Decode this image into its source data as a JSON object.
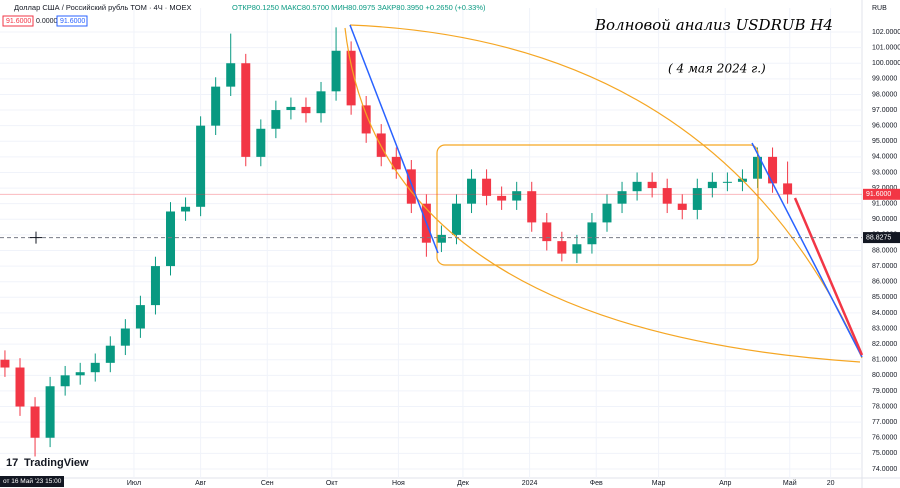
{
  "chart_data": {
    "type": "candlestick",
    "symbol": "Доллар США / Российский рубль TOM · 4Ч · MOEX",
    "ohlc_info": "ОТКР80.1250 МАКС80.5700 МИН80.0975 ЗАКР80.3950 +0.2650 (+0.33%)",
    "price_boxes": [
      "91.6000",
      "0.0000",
      "91.6000"
    ],
    "currency": "RUB",
    "title": "Волновой анализ USDRUB H4",
    "subtitle": "( 4 мая 2024 г.)",
    "brand": "TradingView",
    "cursor_time": "от 16 Май '23  15:00",
    "last_price": {
      "value": 91.6,
      "label": "91.6000"
    },
    "crosshair_price": {
      "value": 88.8275,
      "label": "88.8275"
    },
    "colors": {
      "up": "#089981",
      "down": "#f23645"
    },
    "x": [
      -60,
      -53,
      -46,
      -39,
      -32,
      -25,
      -18,
      -11,
      -4,
      3,
      10,
      17,
      24,
      31,
      38,
      45,
      52,
      59,
      66,
      73,
      80,
      87,
      94,
      101,
      108,
      115,
      122,
      129,
      136,
      143,
      150,
      157,
      164,
      171,
      178,
      185,
      192,
      199,
      206,
      213,
      220,
      227,
      234,
      241,
      248,
      255,
      262,
      269,
      276,
      283,
      290,
      297,
      304
    ],
    "open": [
      81,
      80.5,
      78,
      76,
      79.3,
      80,
      80.2,
      80.8,
      81.9,
      83,
      84.5,
      87,
      90.5,
      90.8,
      96,
      98.5,
      100,
      94,
      95.8,
      97,
      97.2,
      96.8,
      98.2,
      100.8,
      97.3,
      95.5,
      94,
      93.2,
      91,
      88.5,
      89,
      91,
      92.6,
      91.5,
      91.2,
      91.8,
      89.8,
      88.6,
      87.8,
      88.4,
      89.8,
      91,
      91.8,
      92.4,
      92,
      91,
      90.6,
      92,
      92.4,
      92.4,
      92.6,
      94,
      92.3
    ],
    "high": [
      81.6,
      81.1,
      78.6,
      79.9,
      80.6,
      80.8,
      81.4,
      82.5,
      83.6,
      85.1,
      87.6,
      91.1,
      91.4,
      96.6,
      99.1,
      101.9,
      100.6,
      96.4,
      97.6,
      97.8,
      97.8,
      98.8,
      102.3,
      101.4,
      97.9,
      96.1,
      94.6,
      93.8,
      91.6,
      89.6,
      91.6,
      93.2,
      93.2,
      92.1,
      92.4,
      92.4,
      90.4,
      89.2,
      89,
      90.4,
      91.6,
      92.4,
      93,
      93,
      92.6,
      91.6,
      92.6,
      93,
      93,
      93.2,
      94.6,
      94.6,
      93.7
    ],
    "low": [
      79.9,
      77.4,
      74.8,
      75.4,
      78.7,
      79.4,
      79.6,
      80.2,
      81.3,
      82.4,
      83.9,
      86.4,
      89.9,
      90.2,
      95.4,
      97.9,
      93.4,
      93.4,
      95.2,
      96.4,
      96.2,
      96.2,
      97.6,
      96.7,
      94.9,
      93.4,
      92.6,
      90.4,
      87.6,
      87.9,
      88.4,
      90.4,
      90.9,
      90.6,
      90.6,
      89.2,
      88,
      87.3,
      87.2,
      87.8,
      89.2,
      90.4,
      91.2,
      91.4,
      90.4,
      90,
      90,
      91.4,
      91.8,
      91.8,
      92,
      91.7,
      91
    ],
    "close": [
      80.5,
      78,
      76,
      79.3,
      80,
      80.2,
      80.8,
      81.9,
      83,
      84.5,
      87,
      90.5,
      90.8,
      96,
      98.5,
      100,
      94,
      95.8,
      97,
      97.2,
      96.8,
      98.2,
      100.8,
      97.3,
      95.5,
      94,
      93.2,
      91,
      88.5,
      89,
      91,
      92.6,
      91.5,
      91.2,
      91.8,
      89.8,
      88.6,
      87.8,
      88.4,
      89.8,
      91,
      91.8,
      92.4,
      92,
      91,
      90.6,
      92,
      92.4,
      92.4,
      92.6,
      94,
      92.3,
      91.6
    ],
    "xlim": [
      -62.3,
      338.6
    ],
    "xticks": [
      {
        "value": 0,
        "label": "Июл"
      },
      {
        "value": 31,
        "label": "Авг"
      },
      {
        "value": 62,
        "label": "Сен"
      },
      {
        "value": 92,
        "label": "Окт"
      },
      {
        "value": 123,
        "label": "Ноя"
      },
      {
        "value": 153,
        "label": "Дек"
      },
      {
        "value": 184,
        "label": "2024"
      },
      {
        "value": 215,
        "label": "Фев"
      },
      {
        "value": 244,
        "label": "Мар"
      },
      {
        "value": 275,
        "label": "Апр"
      },
      {
        "value": 305,
        "label": "Май"
      },
      {
        "value": 324,
        "label": "20"
      }
    ],
    "ylim": [
      73.42,
      103.54
    ],
    "yticks": [
      {
        "value": 74,
        "label": "74.0000"
      },
      {
        "value": 75,
        "label": "75.0000"
      },
      {
        "value": 76,
        "label": "76.0000"
      },
      {
        "value": 77,
        "label": "77.0000"
      },
      {
        "value": 78,
        "label": "78.0000"
      },
      {
        "value": 79,
        "label": "79.0000"
      },
      {
        "value": 80,
        "label": "80.0000"
      },
      {
        "value": 81,
        "label": "81.0000"
      },
      {
        "value": 82,
        "label": "82.0000"
      },
      {
        "value": 83,
        "label": "83.0000"
      },
      {
        "value": 84,
        "label": "84.0000"
      },
      {
        "value": 85,
        "label": "85.0000"
      },
      {
        "value": 86,
        "label": "86.0000"
      },
      {
        "value": 87,
        "label": "87.0000"
      },
      {
        "value": 88,
        "label": "88.0000"
      },
      {
        "value": 89,
        "label": "89.0000"
      },
      {
        "value": 90,
        "label": "90.0000"
      },
      {
        "value": 91,
        "label": "91.0000"
      },
      {
        "value": 92,
        "label": "92.0000"
      },
      {
        "value": 93,
        "label": "93.0000"
      },
      {
        "value": 94,
        "label": "94.0000"
      },
      {
        "value": 95,
        "label": "95.0000"
      },
      {
        "value": 96,
        "label": "96.0000"
      },
      {
        "value": 97,
        "label": "97.0000"
      },
      {
        "value": 98,
        "label": "98.0000"
      },
      {
        "value": 99,
        "label": "99.0000"
      },
      {
        "value": 100,
        "label": "100.0000"
      },
      {
        "value": 101,
        "label": "101.0000"
      },
      {
        "value": 102,
        "label": "102.0000"
      }
    ]
  }
}
